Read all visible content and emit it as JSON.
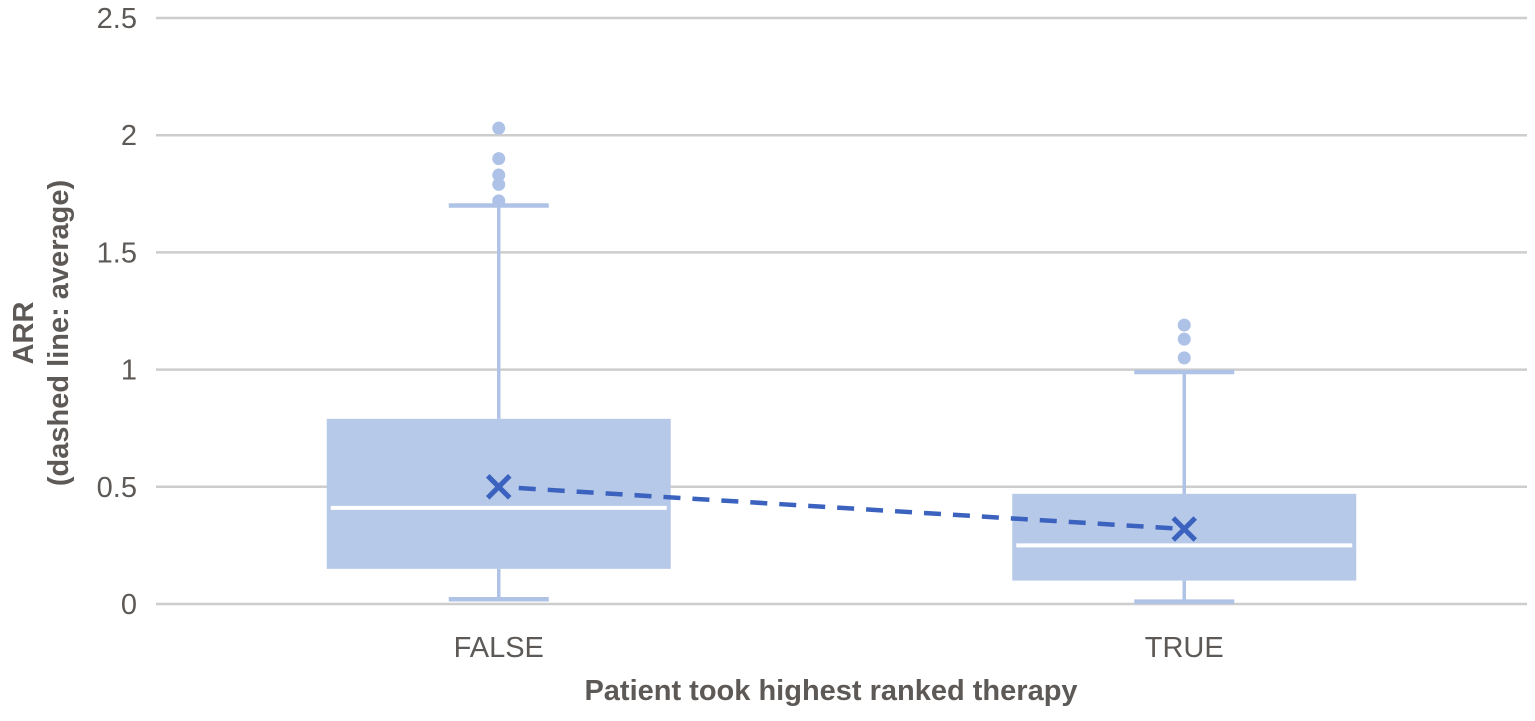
{
  "chart_data": {
    "type": "box",
    "title": "",
    "xlabel": "Patient took highest ranked therapy",
    "ylabel_lines": [
      "ARR",
      "(dashed line: average)"
    ],
    "ylim": [
      0,
      2.5
    ],
    "yticks": [
      0,
      0.5,
      1,
      1.5,
      2,
      2.5
    ],
    "grid": "horizontal gridlines on",
    "legend": "none",
    "categories": [
      "FALSE",
      "TRUE"
    ],
    "boxes": [
      {
        "category": "FALSE",
        "whisker_low": 0.02,
        "q1": 0.15,
        "median": 0.41,
        "q3": 0.79,
        "whisker_high": 1.7,
        "mean": 0.5,
        "outliers": [
          1.72,
          1.79,
          1.83,
          1.9,
          2.03
        ]
      },
      {
        "category": "TRUE",
        "whisker_low": 0.01,
        "q1": 0.1,
        "median": 0.25,
        "q3": 0.47,
        "whisker_high": 0.99,
        "mean": 0.32,
        "outliers": [
          1.05,
          1.13,
          1.19
        ]
      }
    ],
    "mean_connector": "dashed line connecting category means",
    "colors": {
      "box_fill": "#b7c9e8",
      "whisker_line": "#afc3e6",
      "outlier_dot": "#adc2e6",
      "median_line": "#ffffff",
      "mean_marker": "#3a62be",
      "mean_dash_line": "#3a62be",
      "gridline": "#cdcdcd",
      "axis_text": "#5d5956"
    }
  }
}
